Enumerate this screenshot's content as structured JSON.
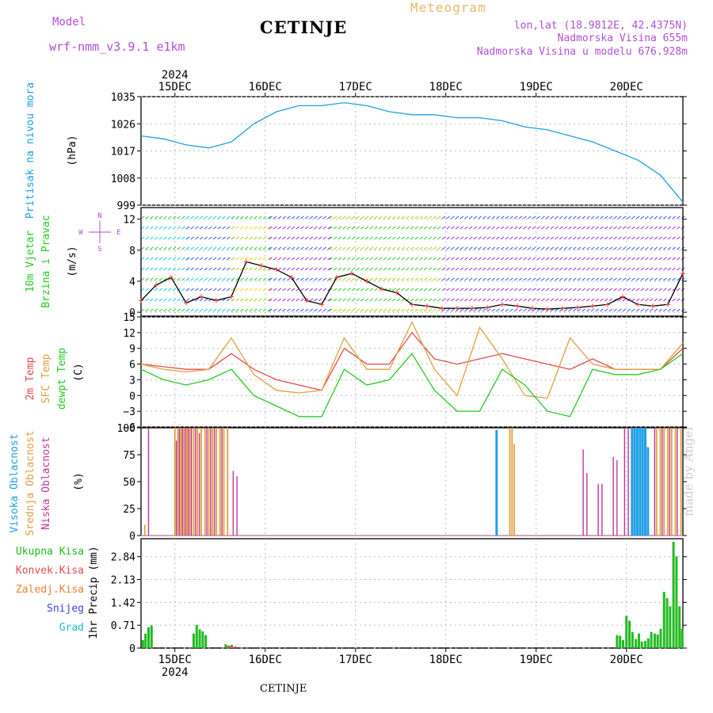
{
  "header": {
    "model_label": "Model",
    "model_name": "wrf-nmm_v3.9.1  e1km",
    "station": "CETINJE",
    "product": "Meteogram",
    "lonlat": "lon,lat (18.9812E, 42.4375N)",
    "elevation": "Nadmorska Visina 655m",
    "model_elevation": "Nadmorska Visina u modelu 676.928m",
    "footer_station": "CETINJE",
    "credit": "made by Angel"
  },
  "colors": {
    "pressure": "#1e9fe6",
    "temp2m": "#e84a4a",
    "sfc_temp": "#e0a040",
    "dewpoint": "#22cc22",
    "cloud_high": "#1e9fe6",
    "cloud_mid": "#e0a040",
    "cloud_low": "#c0359a",
    "precip_total": "#22bb22",
    "precip_conv": "#e84a4a",
    "purple_text": "#b050d0",
    "orange_text": "#e8b868"
  },
  "chart_data": [
    {
      "id": "pressure",
      "type": "line",
      "ylabel_lines": [
        "Pritisak na nivou mora"
      ],
      "unit": "(hPa)",
      "ylim": [
        999,
        1035
      ],
      "yticks": [
        999,
        1008,
        1017,
        1026,
        1035
      ],
      "grid": true,
      "x": [
        0,
        6,
        12,
        18,
        24,
        30,
        36,
        42,
        48,
        54,
        60,
        66,
        72,
        78,
        84,
        90,
        96,
        102,
        108,
        114,
        120,
        126,
        132,
        138,
        144
      ],
      "values": [
        1022,
        1021,
        1019,
        1018,
        1020,
        1026,
        1030,
        1032,
        1032,
        1033,
        1032,
        1030,
        1029,
        1029,
        1028,
        1028,
        1027,
        1025,
        1024,
        1022,
        1020,
        1017,
        1014,
        1009,
        1000
      ]
    },
    {
      "id": "wind",
      "type": "line",
      "ylabel_lines": [
        "10m Vjetar",
        "Brzina i Pravac"
      ],
      "unit": "(m/s)",
      "compass_labels": [
        "N",
        "E",
        "S",
        "W"
      ],
      "ylim": [
        -0.5,
        13.5
      ],
      "yticks": [
        0,
        4,
        8,
        12
      ],
      "grid": true,
      "x": [
        0,
        4,
        8,
        12,
        16,
        20,
        24,
        28,
        32,
        36,
        40,
        44,
        48,
        52,
        56,
        60,
        64,
        68,
        72,
        76,
        80,
        84,
        88,
        92,
        96,
        100,
        104,
        108,
        112,
        116,
        120,
        124,
        128,
        132,
        136,
        140,
        144
      ],
      "values": [
        1.5,
        3.5,
        4.5,
        1.2,
        2.0,
        1.5,
        2.0,
        6.5,
        6.0,
        5.5,
        4.5,
        1.5,
        1.0,
        4.5,
        5.0,
        4.0,
        3.0,
        2.5,
        1.0,
        0.8,
        0.5,
        0.5,
        0.5,
        0.6,
        1.0,
        0.8,
        0.5,
        0.4,
        0.5,
        0.6,
        0.8,
        1.0,
        2.0,
        1.0,
        0.8,
        1.0,
        5.0
      ],
      "barb_colors": [
        "#a020f0",
        "#3050ff",
        "#00ccff",
        "#22cc22",
        "#aacc00",
        "#ffcc00",
        "#ff6600"
      ]
    },
    {
      "id": "temperature",
      "type": "line",
      "ylabel_lines": [
        "2m Temp",
        "SFC Temp",
        "dewpt Temp"
      ],
      "unit": "(C)",
      "ylim": [
        -6,
        15
      ],
      "yticks": [
        -6,
        -3,
        0,
        3,
        6,
        9,
        12,
        15
      ],
      "grid": true,
      "x": [
        0,
        6,
        12,
        18,
        24,
        30,
        36,
        42,
        48,
        54,
        60,
        66,
        72,
        78,
        84,
        90,
        96,
        102,
        108,
        114,
        120,
        126,
        132,
        138,
        144
      ],
      "series": [
        {
          "name": "2m Temp",
          "values": [
            6,
            5.5,
            5,
            5,
            8,
            5,
            3,
            2,
            1,
            9,
            6,
            6,
            12,
            7,
            6,
            7,
            8,
            7,
            6,
            5,
            7,
            5,
            5,
            5,
            9
          ]
        },
        {
          "name": "SFC Temp",
          "values": [
            6,
            5,
            4.5,
            5,
            11,
            4,
            1,
            0.5,
            1,
            11,
            5,
            5,
            14,
            5,
            0,
            13,
            7,
            0,
            -0.5,
            11,
            6,
            5,
            5,
            5,
            10
          ]
        },
        {
          "name": "dewpt Temp",
          "values": [
            5,
            3,
            2,
            3,
            5,
            0,
            -2,
            -4,
            -4,
            5,
            2,
            3,
            8,
            1,
            -3,
            -3,
            5,
            2,
            -3,
            -4,
            5,
            4,
            4,
            5,
            8
          ]
        }
      ]
    },
    {
      "id": "clouds",
      "type": "bar",
      "ylabel_lines": [
        "Visoka Oblacnost",
        "Srednja Oblacnost",
        "Niska  Oblacnost"
      ],
      "unit": "(%)",
      "ylim": [
        0,
        100
      ],
      "yticks": [
        0,
        25,
        50,
        75,
        100
      ],
      "grid": false,
      "series": [
        {
          "name": "Visoka Oblacnost",
          "x": [
            94.5,
            130.5,
            131.2,
            131.9,
            132.6,
            133.3,
            134.0,
            134.7
          ],
          "values": [
            98,
            100,
            100,
            100,
            100,
            100,
            100,
            82
          ]
        },
        {
          "name": "Srednja Oblacnost",
          "x": [
            1,
            9,
            9.8,
            10.6,
            11.4,
            12.2,
            13,
            14,
            15,
            16,
            17,
            18,
            19,
            20,
            21,
            22,
            23,
            98,
            98.6,
            99.2,
            137,
            138,
            139,
            140,
            141,
            142,
            143.5
          ],
          "values": [
            10,
            100,
            100,
            100,
            100,
            100,
            100,
            100,
            100,
            100,
            100,
            100,
            100,
            100,
            100,
            100,
            100,
            100,
            100,
            85,
            100,
            100,
            100,
            100,
            100,
            100,
            100
          ]
        },
        {
          "name": "Niska  Oblacnost",
          "x": [
            2,
            9.4,
            10.2,
            11,
            11.8,
            12.6,
            13.4,
            14.5,
            15.5,
            17.5,
            18.5,
            19.5,
            21.5,
            24.5,
            25.5,
            117.5,
            118.5,
            121.5,
            122.5,
            125.5,
            126.5,
            128.5,
            129.5,
            136.5,
            138.5,
            140.5,
            142.5
          ],
          "values": [
            100,
            88,
            100,
            100,
            100,
            100,
            100,
            100,
            95,
            100,
            100,
            100,
            100,
            60,
            55,
            80,
            58,
            48,
            48,
            73,
            70,
            100,
            100,
            100,
            100,
            100,
            100
          ]
        }
      ]
    },
    {
      "id": "precip",
      "type": "bar",
      "ylabel_lines": [
        "1hr Precip (mm)"
      ],
      "legend": [
        "Ukupna  Kisa",
        "Konvek.Kisa",
        "Zaledj.Kisa",
        "Snijeg",
        "Grad"
      ],
      "ylim": [
        0,
        3.4
      ],
      "yticks": [
        0,
        0.71,
        1.42,
        2.13,
        2.84
      ],
      "grid": true,
      "series": [
        {
          "name": "Ukupna  Kisa",
          "x": [
            0.5,
            1.2,
            2,
            2.8,
            14,
            14.8,
            15.6,
            16.4,
            17.2,
            22.5,
            23.3,
            24.1,
            126.5,
            127.3,
            128.1,
            129,
            129.8,
            130.6,
            131.5,
            132.3,
            133.1,
            134,
            134.8,
            135.6,
            136.5,
            137.3,
            138.1,
            139,
            139.8,
            140.6,
            141.5,
            142.3,
            143.1,
            143.8
          ],
          "values": [
            0.25,
            0.45,
            0.65,
            0.7,
            0.45,
            0.72,
            0.58,
            0.52,
            0.4,
            0.12,
            0.08,
            0.1,
            0.4,
            0.38,
            0.25,
            1.0,
            0.85,
            0.5,
            0.28,
            0.45,
            0.2,
            0.22,
            0.3,
            0.5,
            0.45,
            0.42,
            0.6,
            1.75,
            1.55,
            1.3,
            3.3,
            2.85,
            1.3,
            0.6
          ]
        },
        {
          "name": "Konvek.Kisa",
          "x": [
            23,
            24,
            25
          ],
          "values": [
            0.06,
            0.07,
            0.05
          ]
        }
      ],
      "xticks": [
        "15DEC",
        "16DEC",
        "17DEC",
        "18DEC",
        "19DEC",
        "20DEC"
      ],
      "year": "2024"
    }
  ]
}
